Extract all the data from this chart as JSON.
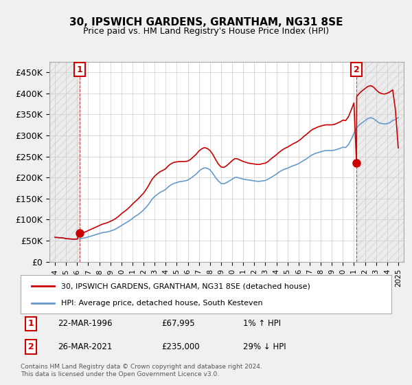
{
  "title": "30, IPSWICH GARDENS, GRANTHAM, NG31 8SE",
  "subtitle": "Price paid vs. HM Land Registry's House Price Index (HPI)",
  "ylabel_ticks": [
    "£0",
    "£50K",
    "£100K",
    "£150K",
    "£200K",
    "£250K",
    "£300K",
    "£350K",
    "£400K",
    "£450K"
  ],
  "ytick_values": [
    0,
    50000,
    100000,
    150000,
    200000,
    250000,
    300000,
    350000,
    400000,
    450000
  ],
  "ylim": [
    0,
    475000
  ],
  "xlim_start": 1993.5,
  "xlim_end": 2025.5,
  "bg_color": "#f0f0f0",
  "plot_bg_color": "#ffffff",
  "grid_color": "#cccccc",
  "sale1_year": 1996.23,
  "sale1_price": 67995,
  "sale2_year": 2021.23,
  "sale2_price": 235000,
  "legend_label_red": "30, IPSWICH GARDENS, GRANTHAM, NG31 8SE (detached house)",
  "legend_label_blue": "HPI: Average price, detached house, South Kesteven",
  "annotation1": "22-MAR-1996    £67,995      1% ↑ HPI",
  "annotation2": "26-MAR-2021    £235,000    29% ↓ HPI",
  "footer": "Contains HM Land Registry data © Crown copyright and database right 2024.\nThis data is licensed under the Open Government Licence v3.0.",
  "red_color": "#cc0000",
  "blue_color": "#6699cc",
  "hpi_data": [
    [
      1994.0,
      58000
    ],
    [
      1994.25,
      57500
    ],
    [
      1994.5,
      57000
    ],
    [
      1994.75,
      56500
    ],
    [
      1995.0,
      55000
    ],
    [
      1995.25,
      54500
    ],
    [
      1995.5,
      54000
    ],
    [
      1995.75,
      53500
    ],
    [
      1996.0,
      54000
    ],
    [
      1996.25,
      55000
    ],
    [
      1996.5,
      56000
    ],
    [
      1996.75,
      57000
    ],
    [
      1997.0,
      59000
    ],
    [
      1997.25,
      61000
    ],
    [
      1997.5,
      63000
    ],
    [
      1997.75,
      65000
    ],
    [
      1998.0,
      67000
    ],
    [
      1998.25,
      69000
    ],
    [
      1998.5,
      70000
    ],
    [
      1998.75,
      71000
    ],
    [
      1999.0,
      73000
    ],
    [
      1999.25,
      75000
    ],
    [
      1999.5,
      78000
    ],
    [
      1999.75,
      82000
    ],
    [
      2000.0,
      86000
    ],
    [
      2000.25,
      90000
    ],
    [
      2000.5,
      94000
    ],
    [
      2000.75,
      98000
    ],
    [
      2001.0,
      103000
    ],
    [
      2001.25,
      108000
    ],
    [
      2001.5,
      112000
    ],
    [
      2001.75,
      117000
    ],
    [
      2002.0,
      123000
    ],
    [
      2002.25,
      130000
    ],
    [
      2002.5,
      138000
    ],
    [
      2002.75,
      148000
    ],
    [
      2003.0,
      155000
    ],
    [
      2003.25,
      160000
    ],
    [
      2003.5,
      165000
    ],
    [
      2003.75,
      168000
    ],
    [
      2004.0,
      172000
    ],
    [
      2004.25,
      178000
    ],
    [
      2004.5,
      183000
    ],
    [
      2004.75,
      186000
    ],
    [
      2005.0,
      188000
    ],
    [
      2005.25,
      190000
    ],
    [
      2005.5,
      191000
    ],
    [
      2005.75,
      192000
    ],
    [
      2006.0,
      194000
    ],
    [
      2006.25,
      198000
    ],
    [
      2006.5,
      203000
    ],
    [
      2006.75,
      208000
    ],
    [
      2007.0,
      215000
    ],
    [
      2007.25,
      220000
    ],
    [
      2007.5,
      223000
    ],
    [
      2007.75,
      222000
    ],
    [
      2008.0,
      218000
    ],
    [
      2008.25,
      210000
    ],
    [
      2008.5,
      200000
    ],
    [
      2008.75,
      192000
    ],
    [
      2009.0,
      186000
    ],
    [
      2009.25,
      185000
    ],
    [
      2009.5,
      188000
    ],
    [
      2009.75,
      192000
    ],
    [
      2010.0,
      196000
    ],
    [
      2010.25,
      200000
    ],
    [
      2010.5,
      200000
    ],
    [
      2010.75,
      198000
    ],
    [
      2011.0,
      196000
    ],
    [
      2011.25,
      195000
    ],
    [
      2011.5,
      194000
    ],
    [
      2011.75,
      193000
    ],
    [
      2012.0,
      192000
    ],
    [
      2012.25,
      191000
    ],
    [
      2012.5,
      191000
    ],
    [
      2012.75,
      192000
    ],
    [
      2013.0,
      193000
    ],
    [
      2013.25,
      196000
    ],
    [
      2013.5,
      200000
    ],
    [
      2013.75,
      204000
    ],
    [
      2014.0,
      208000
    ],
    [
      2014.25,
      213000
    ],
    [
      2014.5,
      217000
    ],
    [
      2014.75,
      220000
    ],
    [
      2015.0,
      222000
    ],
    [
      2015.25,
      225000
    ],
    [
      2015.5,
      228000
    ],
    [
      2015.75,
      230000
    ],
    [
      2016.0,
      233000
    ],
    [
      2016.25,
      237000
    ],
    [
      2016.5,
      241000
    ],
    [
      2016.75,
      245000
    ],
    [
      2017.0,
      250000
    ],
    [
      2017.25,
      254000
    ],
    [
      2017.5,
      257000
    ],
    [
      2017.75,
      259000
    ],
    [
      2018.0,
      261000
    ],
    [
      2018.25,
      263000
    ],
    [
      2018.5,
      264000
    ],
    [
      2018.75,
      264000
    ],
    [
      2019.0,
      264000
    ],
    [
      2019.25,
      265000
    ],
    [
      2019.5,
      267000
    ],
    [
      2019.75,
      269000
    ],
    [
      2020.0,
      272000
    ],
    [
      2020.25,
      271000
    ],
    [
      2020.5,
      278000
    ],
    [
      2020.75,
      290000
    ],
    [
      2021.0,
      305000
    ],
    [
      2021.25,
      318000
    ],
    [
      2021.5,
      325000
    ],
    [
      2021.75,
      330000
    ],
    [
      2022.0,
      335000
    ],
    [
      2022.25,
      340000
    ],
    [
      2022.5,
      342000
    ],
    [
      2022.75,
      340000
    ],
    [
      2023.0,
      335000
    ],
    [
      2023.25,
      330000
    ],
    [
      2023.5,
      328000
    ],
    [
      2023.75,
      327000
    ],
    [
      2024.0,
      328000
    ],
    [
      2024.25,
      330000
    ],
    [
      2024.5,
      335000
    ],
    [
      2024.75,
      338000
    ],
    [
      2025.0,
      342000
    ]
  ],
  "price_data": [
    [
      1994.0,
      58000
    ],
    [
      1994.25,
      57500
    ],
    [
      1994.5,
      57000
    ],
    [
      1994.75,
      56500
    ],
    [
      1995.0,
      55000
    ],
    [
      1995.25,
      54500
    ],
    [
      1995.5,
      54000
    ],
    [
      1995.75,
      53500
    ],
    [
      1996.0,
      54000
    ],
    [
      1996.23,
      67995
    ],
    [
      1996.25,
      67995
    ],
    [
      1996.5,
      69000
    ],
    [
      1996.75,
      71000
    ],
    [
      1997.0,
      74000
    ],
    [
      1997.25,
      77000
    ],
    [
      1997.5,
      80000
    ],
    [
      1997.75,
      83000
    ],
    [
      1998.0,
      86000
    ],
    [
      1998.25,
      89000
    ],
    [
      1998.5,
      91000
    ],
    [
      1998.75,
      93000
    ],
    [
      1999.0,
      96000
    ],
    [
      1999.25,
      99000
    ],
    [
      1999.5,
      103000
    ],
    [
      1999.75,
      108000
    ],
    [
      2000.0,
      114000
    ],
    [
      2000.25,
      119000
    ],
    [
      2000.5,
      124000
    ],
    [
      2000.75,
      130000
    ],
    [
      2001.0,
      137000
    ],
    [
      2001.25,
      143000
    ],
    [
      2001.5,
      149000
    ],
    [
      2001.75,
      156000
    ],
    [
      2002.0,
      163000
    ],
    [
      2002.25,
      172000
    ],
    [
      2002.5,
      183000
    ],
    [
      2002.75,
      195000
    ],
    [
      2003.0,
      203000
    ],
    [
      2003.25,
      209000
    ],
    [
      2003.5,
      214000
    ],
    [
      2003.75,
      217000
    ],
    [
      2004.0,
      221000
    ],
    [
      2004.25,
      228000
    ],
    [
      2004.5,
      233000
    ],
    [
      2004.75,
      236000
    ],
    [
      2005.0,
      237000
    ],
    [
      2005.25,
      238000
    ],
    [
      2005.5,
      238000
    ],
    [
      2005.75,
      238000
    ],
    [
      2006.0,
      239000
    ],
    [
      2006.25,
      243000
    ],
    [
      2006.5,
      249000
    ],
    [
      2006.75,
      255000
    ],
    [
      2007.0,
      263000
    ],
    [
      2007.25,
      268000
    ],
    [
      2007.5,
      271000
    ],
    [
      2007.75,
      269000
    ],
    [
      2008.0,
      264000
    ],
    [
      2008.25,
      255000
    ],
    [
      2008.5,
      243000
    ],
    [
      2008.75,
      232000
    ],
    [
      2009.0,
      225000
    ],
    [
      2009.25,
      224000
    ],
    [
      2009.5,
      228000
    ],
    [
      2009.75,
      234000
    ],
    [
      2010.0,
      240000
    ],
    [
      2010.25,
      245000
    ],
    [
      2010.5,
      244000
    ],
    [
      2010.75,
      241000
    ],
    [
      2011.0,
      238000
    ],
    [
      2011.25,
      236000
    ],
    [
      2011.5,
      234000
    ],
    [
      2011.75,
      233000
    ],
    [
      2012.0,
      232000
    ],
    [
      2012.25,
      231000
    ],
    [
      2012.5,
      231000
    ],
    [
      2012.75,
      233000
    ],
    [
      2013.0,
      234000
    ],
    [
      2013.25,
      238000
    ],
    [
      2013.5,
      244000
    ],
    [
      2013.75,
      249000
    ],
    [
      2014.0,
      254000
    ],
    [
      2014.25,
      260000
    ],
    [
      2014.5,
      265000
    ],
    [
      2014.75,
      269000
    ],
    [
      2015.0,
      272000
    ],
    [
      2015.25,
      276000
    ],
    [
      2015.5,
      280000
    ],
    [
      2015.75,
      283000
    ],
    [
      2016.0,
      287000
    ],
    [
      2016.25,
      292000
    ],
    [
      2016.5,
      298000
    ],
    [
      2016.75,
      303000
    ],
    [
      2017.0,
      309000
    ],
    [
      2017.25,
      314000
    ],
    [
      2017.5,
      317000
    ],
    [
      2017.75,
      320000
    ],
    [
      2018.0,
      322000
    ],
    [
      2018.25,
      324000
    ],
    [
      2018.5,
      325000
    ],
    [
      2018.75,
      325000
    ],
    [
      2019.0,
      325000
    ],
    [
      2019.25,
      326000
    ],
    [
      2019.5,
      329000
    ],
    [
      2019.75,
      332000
    ],
    [
      2020.0,
      336000
    ],
    [
      2020.25,
      335000
    ],
    [
      2020.5,
      344000
    ],
    [
      2020.75,
      360000
    ],
    [
      2021.0,
      377000
    ],
    [
      2021.23,
      235000
    ],
    [
      2021.25,
      392000
    ],
    [
      2021.5,
      400000
    ],
    [
      2021.75,
      406000
    ],
    [
      2022.0,
      411000
    ],
    [
      2022.25,
      416000
    ],
    [
      2022.5,
      418000
    ],
    [
      2022.75,
      415000
    ],
    [
      2023.0,
      408000
    ],
    [
      2023.25,
      402000
    ],
    [
      2023.5,
      399000
    ],
    [
      2023.75,
      398000
    ],
    [
      2024.0,
      400000
    ],
    [
      2024.25,
      403000
    ],
    [
      2024.5,
      408000
    ],
    [
      2024.75,
      360000
    ],
    [
      2025.0,
      270000
    ]
  ]
}
